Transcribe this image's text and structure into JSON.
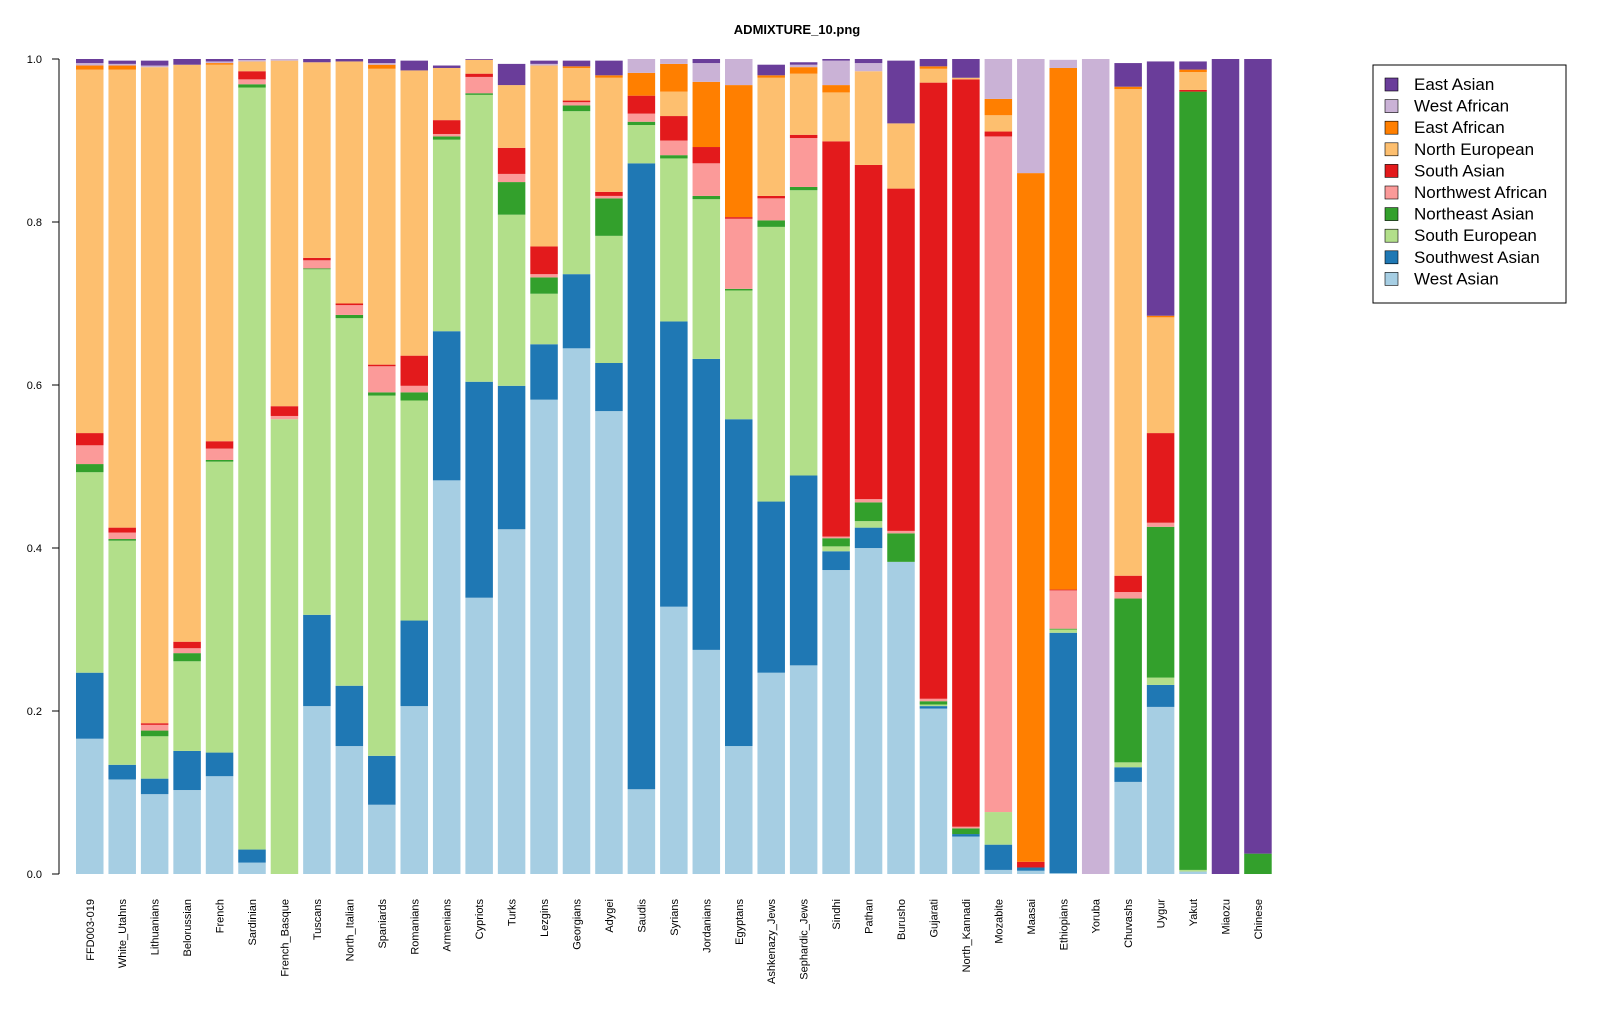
{
  "chart_data": {
    "type": "bar",
    "stacked": true,
    "title": "ADMIXTURE_10.png",
    "xlabel": "",
    "ylabel": "",
    "ylim": [
      0,
      1.0
    ],
    "yticks": [
      "0.0",
      "0.2",
      "0.4",
      "0.6",
      "0.8",
      "1.0"
    ],
    "legend_position": "top-right",
    "legend": [
      {
        "name": "East Asian",
        "color": "#6a3d9a"
      },
      {
        "name": "West African",
        "color": "#cab2d6"
      },
      {
        "name": "East African",
        "color": "#ff7f00"
      },
      {
        "name": "North European",
        "color": "#fdbf6f"
      },
      {
        "name": "South Asian",
        "color": "#e31a1c"
      },
      {
        "name": "Northwest African",
        "color": "#fb9a99"
      },
      {
        "name": "Northeast Asian",
        "color": "#33a02c"
      },
      {
        "name": "South European",
        "color": "#b2df8a"
      },
      {
        "name": "Southwest Asian",
        "color": "#1f78b4"
      },
      {
        "name": "West Asian",
        "color": "#a6cee3"
      }
    ],
    "stack_order": [
      "West Asian",
      "Southwest Asian",
      "South European",
      "Northeast Asian",
      "Northwest African",
      "South Asian",
      "North European",
      "East African",
      "West African",
      "East Asian"
    ],
    "categories": [
      "FFD003-019",
      "White_Utahns",
      "Lithuanians",
      "Belorussian",
      "French",
      "Sardinian",
      "French_Basque",
      "Tuscans",
      "North_Italian",
      "Spaniards",
      "Romanians",
      "Armenians",
      "Cypriots",
      "Turks",
      "Lezgins",
      "Georgians",
      "Adygei",
      "Saudis",
      "Syrians",
      "Jordanians",
      "Egyptans",
      "Ashkenazy_Jews",
      "Sephardic_Jews",
      "Sindhi",
      "Pathan",
      "Burusho",
      "Gujarati",
      "North_Kannadi",
      "Mozabite",
      "Maasai",
      "Ethiopians",
      "Yoruba",
      "Chuvashs",
      "Uygur",
      "Yakut",
      "Miaozu",
      "Chinese"
    ],
    "series": [
      {
        "name": "West Asian",
        "values": [
          0.166,
          0.116,
          0.098,
          0.103,
          0.12,
          0.014,
          0.0,
          0.206,
          0.157,
          0.085,
          0.206,
          0.483,
          0.339,
          0.423,
          0.582,
          0.645,
          0.568,
          0.104,
          0.328,
          0.275,
          0.157,
          0.247,
          0.256,
          0.373,
          0.4,
          0.383,
          0.203,
          0.046,
          0.005,
          0.004,
          0.001,
          0.0,
          0.113,
          0.205,
          0.003,
          0.0,
          0.0
        ]
      },
      {
        "name": "Southwest Asian",
        "values": [
          0.081,
          0.018,
          0.019,
          0.048,
          0.029,
          0.016,
          0.0,
          0.112,
          0.074,
          0.06,
          0.105,
          0.183,
          0.265,
          0.176,
          0.068,
          0.091,
          0.059,
          0.768,
          0.35,
          0.357,
          0.401,
          0.21,
          0.233,
          0.023,
          0.025,
          0.0,
          0.003,
          0.003,
          0.031,
          0.004,
          0.295,
          0.0,
          0.018,
          0.027,
          0.0,
          0.0,
          0.0
        ]
      },
      {
        "name": "South European",
        "values": [
          0.246,
          0.275,
          0.052,
          0.11,
          0.357,
          0.935,
          0.558,
          0.424,
          0.451,
          0.442,
          0.27,
          0.235,
          0.352,
          0.21,
          0.062,
          0.2,
          0.156,
          0.047,
          0.2,
          0.196,
          0.158,
          0.337,
          0.35,
          0.006,
          0.008,
          0.0,
          0.002,
          0.0,
          0.04,
          0.0,
          0.004,
          0.0,
          0.006,
          0.009,
          0.002,
          0.0,
          0.0
        ]
      },
      {
        "name": "Northeast Asian",
        "values": [
          0.01,
          0.002,
          0.007,
          0.01,
          0.002,
          0.004,
          0.0,
          0.001,
          0.004,
          0.004,
          0.01,
          0.004,
          0.002,
          0.04,
          0.02,
          0.007,
          0.046,
          0.004,
          0.004,
          0.004,
          0.002,
          0.008,
          0.004,
          0.01,
          0.023,
          0.035,
          0.004,
          0.007,
          0.0,
          0.0,
          0.001,
          0.0,
          0.201,
          0.185,
          0.955,
          0.0,
          0.025
        ]
      },
      {
        "name": "Northwest African",
        "values": [
          0.023,
          0.008,
          0.007,
          0.006,
          0.014,
          0.006,
          0.004,
          0.01,
          0.012,
          0.032,
          0.008,
          0.003,
          0.02,
          0.01,
          0.004,
          0.004,
          0.003,
          0.01,
          0.018,
          0.04,
          0.086,
          0.027,
          0.06,
          0.002,
          0.004,
          0.003,
          0.003,
          0.002,
          0.829,
          0.0,
          0.047,
          0.0,
          0.008,
          0.005,
          0.0,
          0.0,
          0.0
        ]
      },
      {
        "name": "South Asian",
        "values": [
          0.015,
          0.006,
          0.002,
          0.008,
          0.009,
          0.01,
          0.012,
          0.003,
          0.002,
          0.002,
          0.037,
          0.017,
          0.004,
          0.032,
          0.034,
          0.002,
          0.005,
          0.022,
          0.03,
          0.02,
          0.002,
          0.003,
          0.004,
          0.485,
          0.41,
          0.42,
          0.756,
          0.917,
          0.006,
          0.007,
          0.001,
          0.0,
          0.02,
          0.11,
          0.002,
          0.0,
          0.0
        ]
      },
      {
        "name": "North European",
        "values": [
          0.446,
          0.562,
          0.805,
          0.708,
          0.462,
          0.012,
          0.424,
          0.24,
          0.297,
          0.363,
          0.35,
          0.064,
          0.017,
          0.077,
          0.222,
          0.04,
          0.14,
          0.0,
          0.03,
          0.0,
          0.0,
          0.145,
          0.075,
          0.06,
          0.115,
          0.08,
          0.017,
          0.002,
          0.02,
          0.0,
          0.0,
          0.0,
          0.597,
          0.142,
          0.022,
          0.0,
          0.0
        ]
      },
      {
        "name": "East African",
        "values": [
          0.005,
          0.005,
          0.0,
          0.0,
          0.002,
          0.0,
          0.0,
          0.0,
          0.0,
          0.005,
          0.0,
          0.0,
          0.0,
          0.0,
          0.0,
          0.002,
          0.003,
          0.028,
          0.034,
          0.08,
          0.162,
          0.003,
          0.008,
          0.009,
          0.0,
          0.0,
          0.003,
          0.0,
          0.02,
          0.845,
          0.64,
          0.0,
          0.003,
          0.002,
          0.003,
          0.0,
          0.0
        ]
      },
      {
        "name": "West African",
        "values": [
          0.003,
          0.002,
          0.002,
          0.0,
          0.002,
          0.002,
          0.002,
          0.0,
          0.0,
          0.002,
          0.0,
          0.0,
          0.0,
          0.0,
          0.002,
          0.0,
          0.0,
          0.02,
          0.016,
          0.023,
          0.032,
          0.0,
          0.003,
          0.03,
          0.01,
          0.0,
          0.0,
          0.0,
          0.065,
          0.14,
          0.01,
          1.0,
          0.0,
          0.0,
          0.0,
          0.0,
          0.0
        ]
      },
      {
        "name": "East Asian",
        "values": [
          0.005,
          0.004,
          0.006,
          0.007,
          0.003,
          0.001,
          0.0,
          0.004,
          0.003,
          0.005,
          0.012,
          0.003,
          0.002,
          0.026,
          0.004,
          0.007,
          0.018,
          0.0,
          0.008,
          0.005,
          0.002,
          0.013,
          0.003,
          0.002,
          0.009,
          0.077,
          0.009,
          0.025,
          0.0,
          0.0,
          0.0,
          0.0,
          0.029,
          0.312,
          0.01,
          1.0,
          0.975
        ]
      }
    ]
  }
}
